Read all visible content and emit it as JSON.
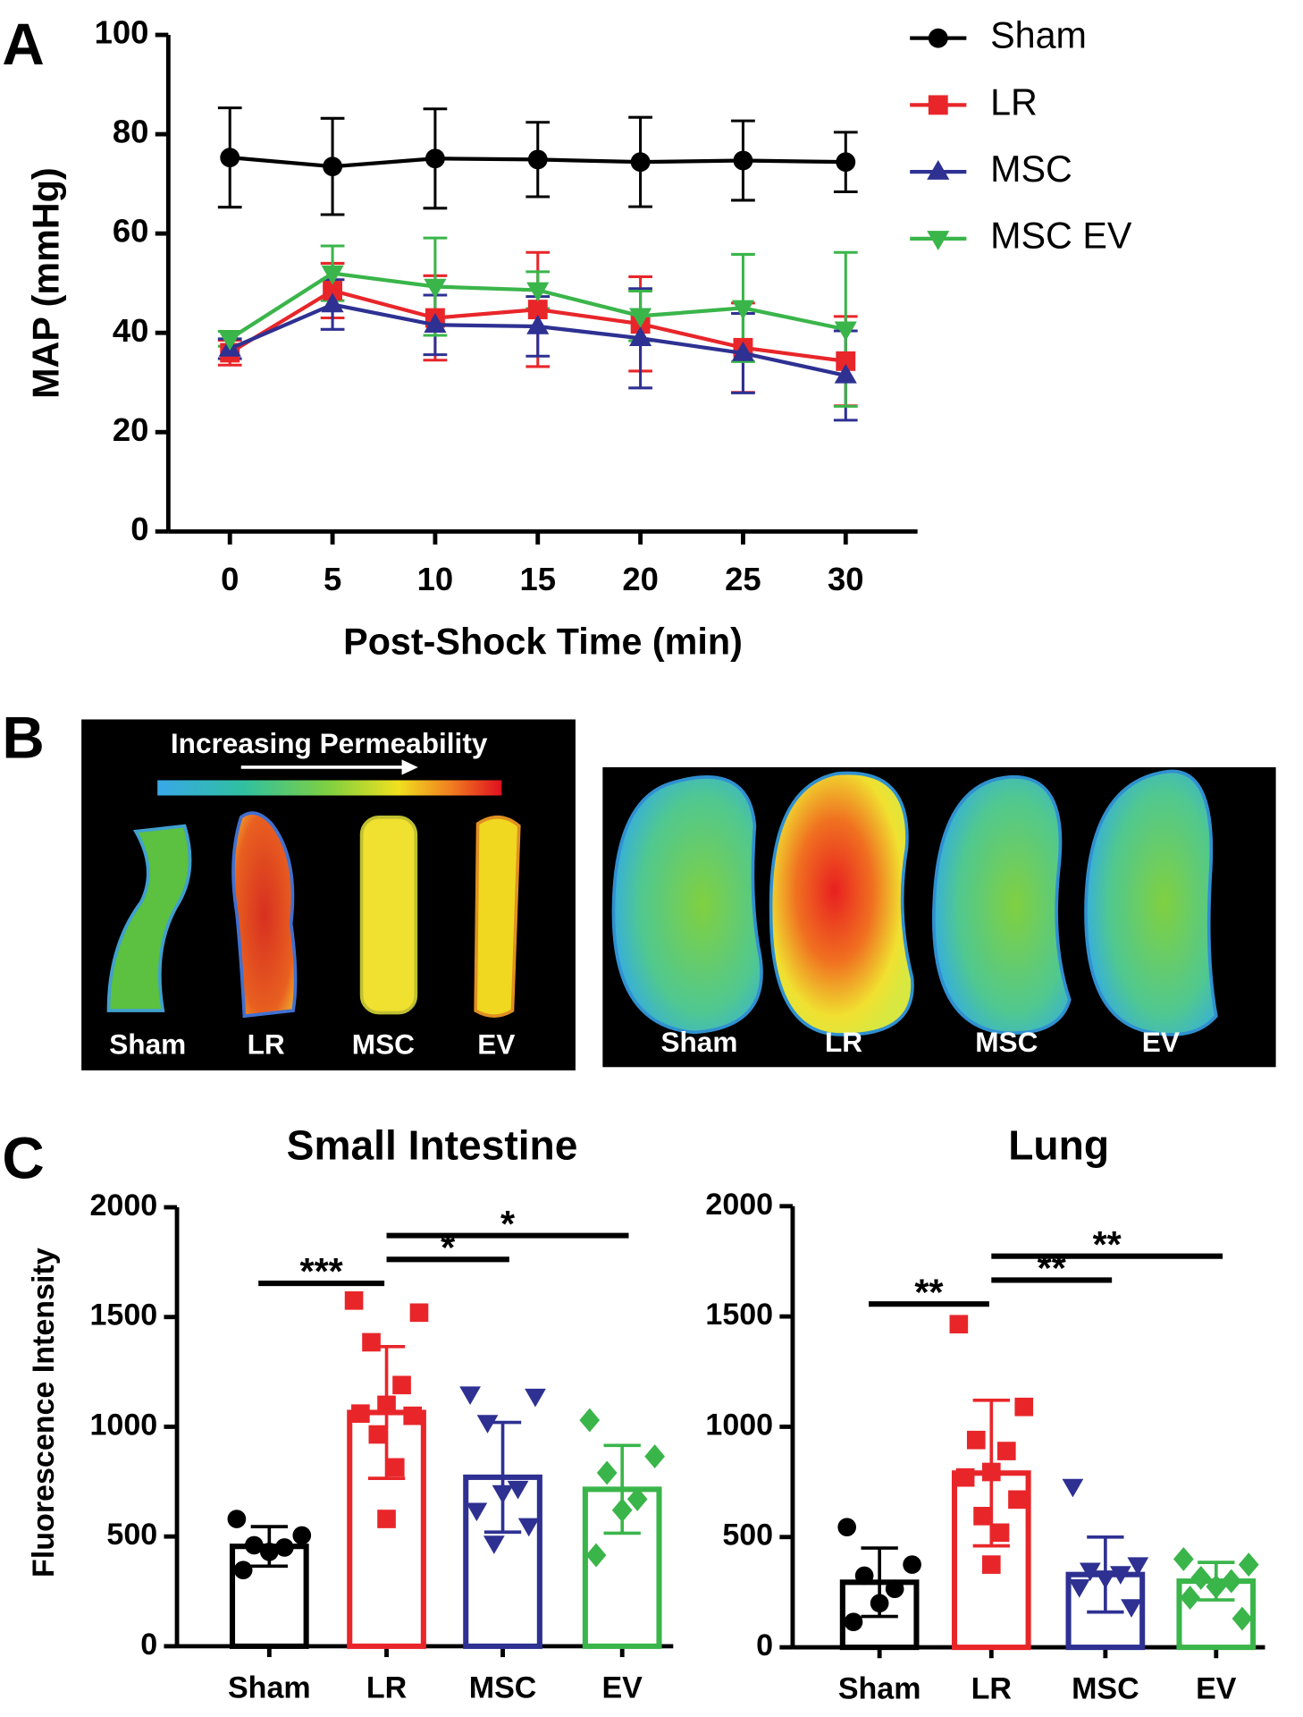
{
  "panel_labels": [
    "A",
    "B",
    "C"
  ],
  "panel_b": {
    "scale_label": "Increasing Permeability",
    "intestine_labels": [
      "Sham",
      "LR",
      "MSC",
      "EV"
    ],
    "lung_labels": [
      "Sham",
      "LR",
      "MSC",
      "EV"
    ]
  },
  "chart_data": [
    {
      "type": "line",
      "xlabel": "Post-Shock Time (min)",
      "ylabel": "MAP (mmHg)",
      "x": [
        0,
        5,
        10,
        15,
        20,
        25,
        30
      ],
      "xlim": [
        -3,
        33.5
      ],
      "xticks": [
        0,
        5,
        10,
        15,
        20,
        25,
        30
      ],
      "ylim": [
        0,
        100
      ],
      "yticks": [
        0,
        20,
        40,
        60,
        80,
        100
      ],
      "legend": "upper right",
      "series": [
        {
          "name": "Sham",
          "color": "#000000",
          "marker": "circle",
          "values": [
            75.3,
            73.5,
            75.1,
            74.9,
            74.4,
            74.7,
            74.4
          ],
          "errors": [
            10,
            9.7,
            10,
            7.5,
            9,
            8,
            6
          ]
        },
        {
          "name": "LR",
          "color": "#e8262a",
          "marker": "square",
          "values": [
            36,
            48.5,
            43,
            44.7,
            41.8,
            37,
            34.3
          ],
          "errors": [
            2.5,
            5.5,
            8.5,
            11.5,
            9.5,
            9,
            9
          ]
        },
        {
          "name": "MSC",
          "color": "#2e3192",
          "marker": "triangle-up",
          "values": [
            36.8,
            45.7,
            41.6,
            41.3,
            38.9,
            35.9,
            31.4
          ],
          "errors": [
            2,
            5,
            6,
            6,
            10,
            8,
            9
          ]
        },
        {
          "name": "MSC EV",
          "color": "#3ab54a",
          "marker": "triangle-down",
          "values": [
            38.8,
            52,
            49.3,
            48.6,
            43.4,
            45,
            40.7
          ],
          "errors": [
            1.5,
            5.5,
            9.8,
            3.7,
            5,
            10.8,
            15.5
          ]
        }
      ]
    },
    {
      "type": "bar",
      "title": "Small Intestine",
      "ylabel": "Fluorescence Intensity",
      "categories": [
        "Sham",
        "LR",
        "MSC",
        "EV"
      ],
      "colors": [
        "#000000",
        "#e8262a",
        "#2e3192",
        "#3ab54a"
      ],
      "markers": [
        "circle",
        "square",
        "triangle-down",
        "diamond"
      ],
      "values": [
        455,
        1065,
        770,
        715
      ],
      "errors": [
        90,
        300,
        250,
        200
      ],
      "points": [
        [
          580,
          505,
          460,
          450,
          430,
          347
        ],
        [
          1575,
          1520,
          1385,
          1190,
          1100,
          1060,
          1050,
          965,
          815,
          580
        ],
        [
          1150,
          1140,
          1020,
          720,
          700,
          620,
          550,
          470
        ],
        [
          1030,
          865,
          790,
          670,
          620,
          415
        ]
      ],
      "ylim": [
        0,
        2000
      ],
      "yticks": [
        0,
        500,
        1000,
        1500,
        2000
      ],
      "significance": [
        {
          "text": "***",
          "from": 0,
          "to": 1
        },
        {
          "text": "*",
          "from": 1,
          "to": 2
        },
        {
          "text": "*",
          "from": 1,
          "to": 3
        }
      ]
    },
    {
      "type": "bar",
      "title": "Lung",
      "categories": [
        "Sham",
        "LR",
        "MSC",
        "EV"
      ],
      "colors": [
        "#000000",
        "#e8262a",
        "#2e3192",
        "#3ab54a"
      ],
      "markers": [
        "circle",
        "square",
        "triangle-down",
        "diamond"
      ],
      "values": [
        295,
        790,
        330,
        300
      ],
      "errors": [
        155,
        330,
        170,
        85
      ],
      "points": [
        [
          545,
          375,
          325,
          265,
          200,
          115
        ],
        [
          1465,
          1090,
          940,
          890,
          795,
          770,
          670,
          595,
          520,
          375
        ],
        [
          730,
          375,
          350,
          335,
          315,
          275,
          185
        ],
        [
          400,
          375,
          315,
          300,
          275,
          225,
          130
        ]
      ],
      "ylim": [
        0,
        2000
      ],
      "yticks": [
        0,
        500,
        1000,
        1500,
        2000
      ],
      "significance": [
        {
          "text": "**",
          "from": 0,
          "to": 1
        },
        {
          "text": "**",
          "from": 1,
          "to": 2
        },
        {
          "text": "**",
          "from": 1,
          "to": 3
        }
      ]
    }
  ]
}
